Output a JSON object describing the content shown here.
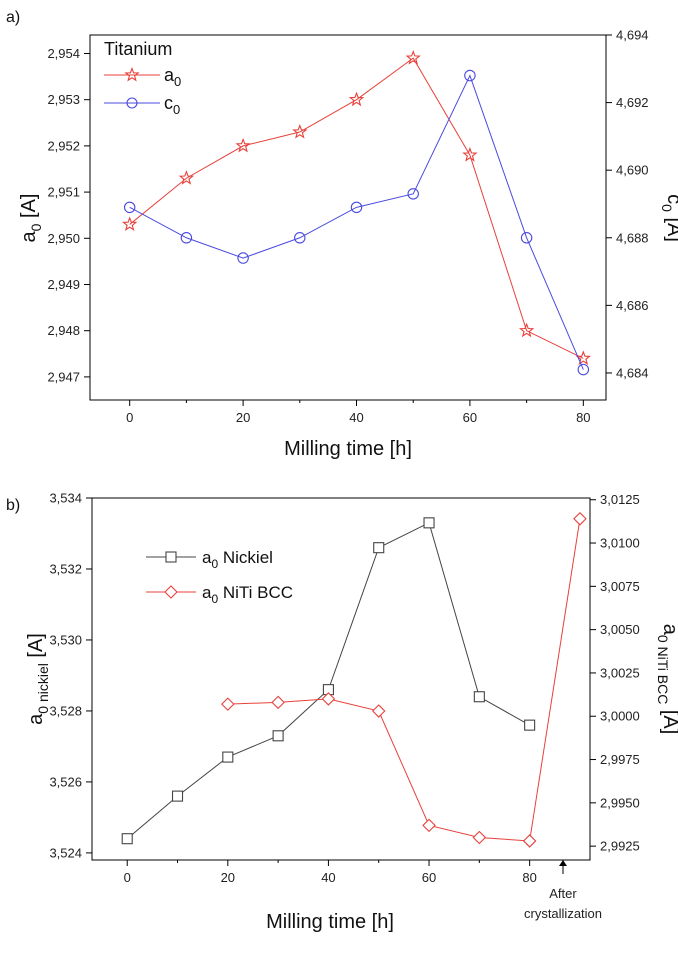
{
  "chart_data": [
    {
      "panel_label": "a)",
      "type": "line",
      "title": "Titanium",
      "xlabel": "Milling time [h]",
      "ylabel_main": "a",
      "ylabel_sub": "0",
      "ylabel_tail": " [A]",
      "y2label_main": "c",
      "y2label_sub": "0",
      "y2label_tail": " [A]",
      "xlim": [
        -7,
        84
      ],
      "ylim": [
        2.9465,
        2.9544
      ],
      "y2lim": [
        4.6832,
        4.694
      ],
      "xticks": [
        0,
        20,
        40,
        60,
        80
      ],
      "yticks": [
        "2,947",
        "2,948",
        "2,949",
        "2,950",
        "2,951",
        "2,952",
        "2,953",
        "2,954"
      ],
      "y2ticks": [
        "4,684",
        "4,686",
        "4,688",
        "4,690",
        "4,692",
        "4,694"
      ],
      "x": [
        0,
        10,
        20,
        30,
        40,
        50,
        60,
        70,
        80
      ],
      "series": [
        {
          "name_main": "a",
          "name_sub": "0",
          "axis": "left",
          "color": "#e8403a",
          "marker": "star",
          "values": [
            2.9503,
            2.9513,
            2.952,
            2.9523,
            2.953,
            2.9539,
            2.9518,
            2.948,
            2.9474
          ]
        },
        {
          "name_main": "c",
          "name_sub": "0",
          "axis": "right",
          "color": "#4a4adf",
          "marker": "circle",
          "values": [
            4.6889,
            4.688,
            4.6874,
            4.688,
            4.6889,
            4.6893,
            4.6928,
            4.688,
            4.6841
          ]
        }
      ],
      "legend_position": "top-left"
    },
    {
      "panel_label": "b)",
      "type": "line",
      "xlabel": "Milling time [h]",
      "ylabel_main": "a",
      "ylabel_sub": "0 nickiel",
      "ylabel_tail": " [A]",
      "y2label_main": "a",
      "y2label_sub": "0 NiTi  BCC",
      "y2label_tail": " [A]",
      "xlim": [
        -7,
        92
      ],
      "ylim": [
        3.5238,
        3.534
      ],
      "y2lim": [
        2.9917,
        3.0126
      ],
      "xticks": [
        0,
        20,
        40,
        60,
        80
      ],
      "extra_tick_label_1": "After",
      "extra_tick_label_2": "crystallization",
      "yticks": [
        "3,524",
        "3,526",
        "3,528",
        "3,530",
        "3,532",
        "3,534"
      ],
      "y2ticks": [
        "2,9925",
        "2,9950",
        "2,9975",
        "3,0000",
        "3,0025",
        "3,0050",
        "3,0075",
        "3,0100",
        "3,0125"
      ],
      "series": [
        {
          "name_main": "a",
          "name_sub": "0",
          "name_tail": " Nickiel",
          "axis": "left",
          "color": "#444444",
          "marker": "square",
          "x": [
            0,
            10,
            20,
            30,
            40,
            50,
            60,
            70,
            80
          ],
          "values": [
            3.5244,
            3.5256,
            3.5267,
            3.5273,
            3.5286,
            3.5326,
            3.5333,
            3.5284,
            3.5276
          ]
        },
        {
          "name_main": "a",
          "name_sub": "0",
          "name_tail": " NiTi  BCC",
          "axis": "right",
          "color": "#e8403a",
          "marker": "diamond",
          "x": [
            20,
            30,
            40,
            50,
            60,
            70,
            80,
            90
          ],
          "values": [
            3.0007,
            3.0008,
            3.001,
            3.0003,
            2.9937,
            2.993,
            2.9928,
            3.0114
          ]
        }
      ],
      "legend_position": "top-left"
    }
  ]
}
